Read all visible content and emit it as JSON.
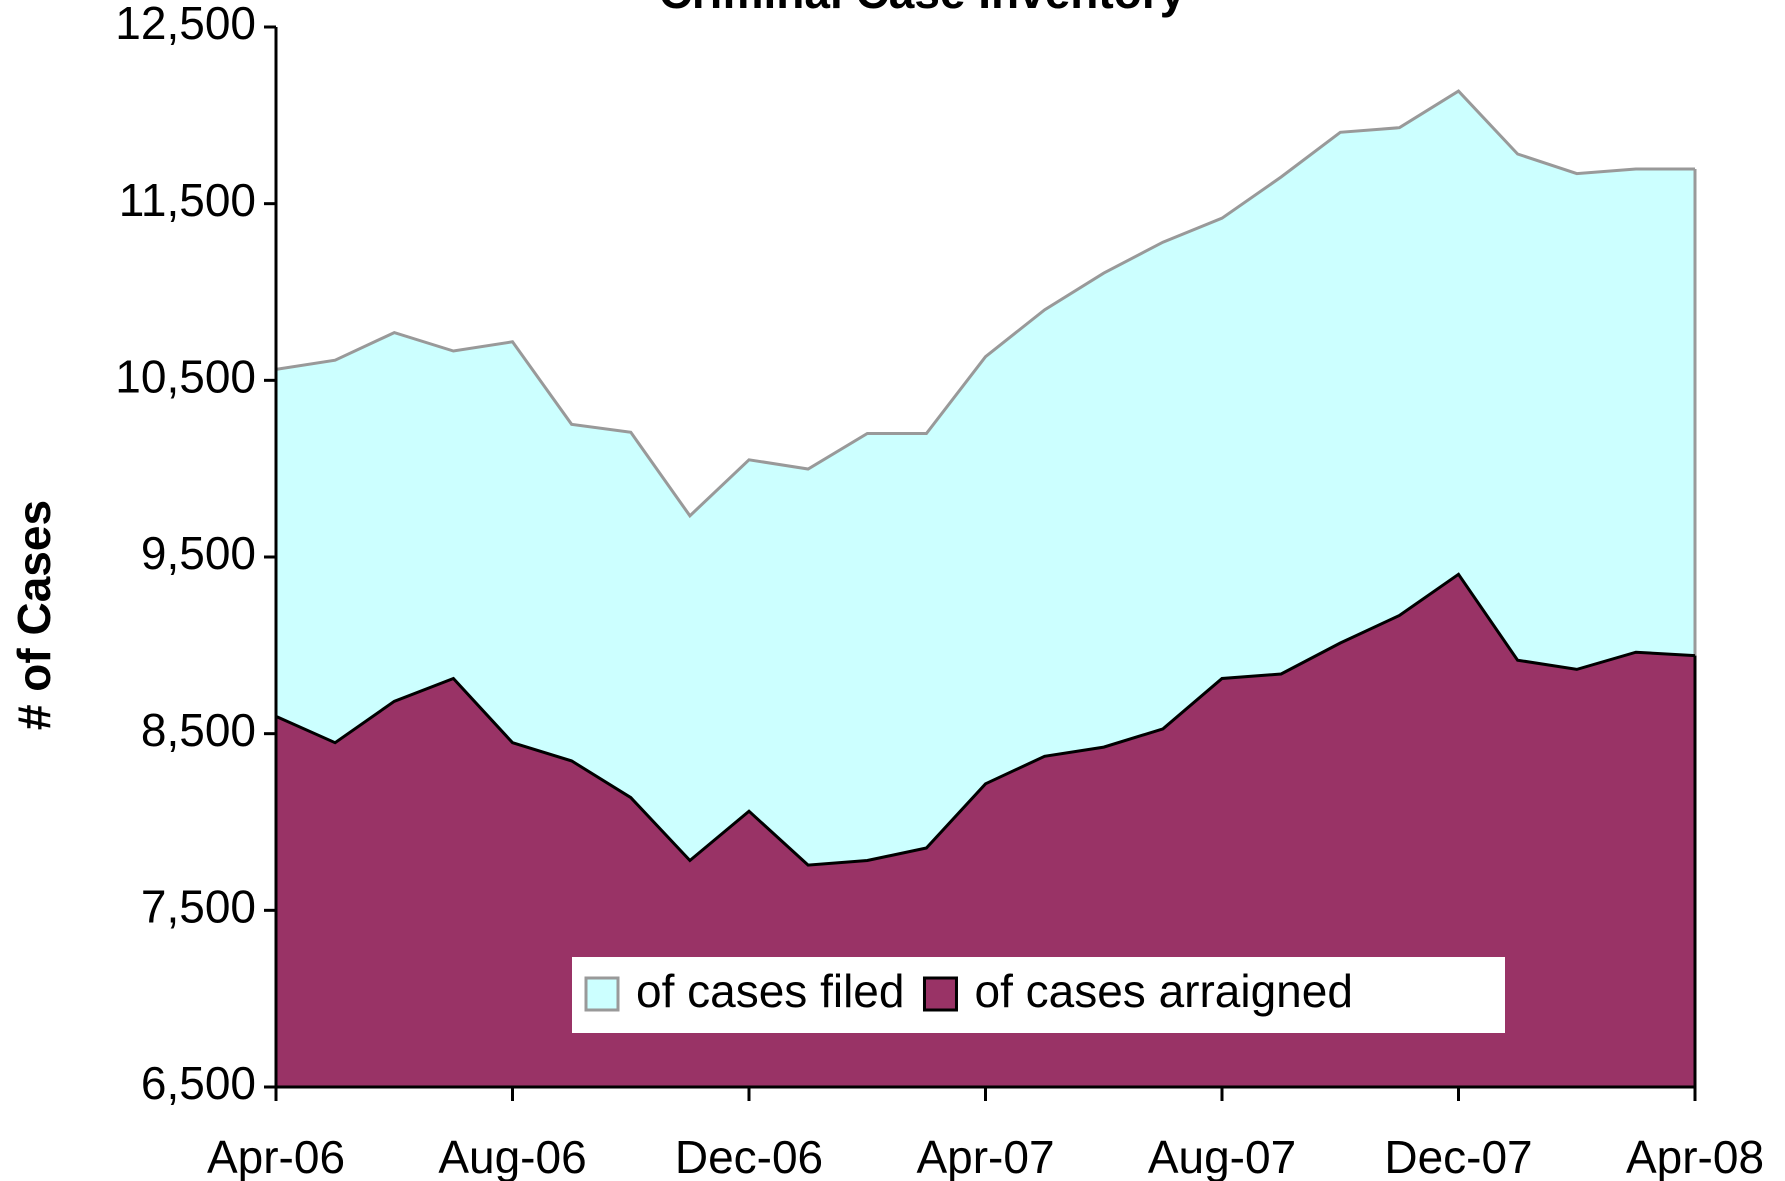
{
  "chart_data": {
    "type": "area",
    "title": "Criminal Case Inventory",
    "y_label": "# of Cases",
    "categories": [
      "Apr-06",
      null,
      null,
      null,
      "Aug-06",
      null,
      null,
      null,
      "Dec-06",
      null,
      null,
      null,
      "Apr-07",
      null,
      null,
      null,
      "Aug-07",
      null,
      null,
      null,
      "Dec-07",
      null,
      null,
      null,
      "Apr-08"
    ],
    "series": [
      {
        "name": "of cases filed",
        "color": "#ccffff",
        "line_color": "#999999",
        "values": [
          10562,
          10614,
          10770,
          10666,
          10718,
          10251,
          10206,
          9733,
          10050,
          9998,
          10199,
          10199,
          10634,
          10899,
          11107,
          11282,
          11418,
          11651,
          11904,
          11930,
          12137,
          11781,
          11670,
          11696,
          11696
        ]
      },
      {
        "name": "of cases arraigned",
        "color": "#993366",
        "line_color": "#000000",
        "values": [
          8598,
          8449,
          8683,
          8812,
          8449,
          8346,
          8138,
          7782,
          8061,
          7756,
          7782,
          7853,
          8216,
          8372,
          8424,
          8527,
          8812,
          8838,
          9013,
          9169,
          9402,
          8916,
          8864,
          8961,
          8942
        ]
      }
    ],
    "ylim": [
      6500,
      12500
    ],
    "yticks": [
      {
        "value": 6500,
        "label": "6,500"
      },
      {
        "value": 7500,
        "label": "7,500"
      },
      {
        "value": 8500,
        "label": "8,500"
      },
      {
        "value": 9500,
        "label": "9,500"
      },
      {
        "value": 10500,
        "label": "10,500"
      },
      {
        "value": 11500,
        "label": "11,500"
      },
      {
        "value": 12500,
        "label": "12,500"
      }
    ],
    "grid": false,
    "legend": "bottom"
  }
}
